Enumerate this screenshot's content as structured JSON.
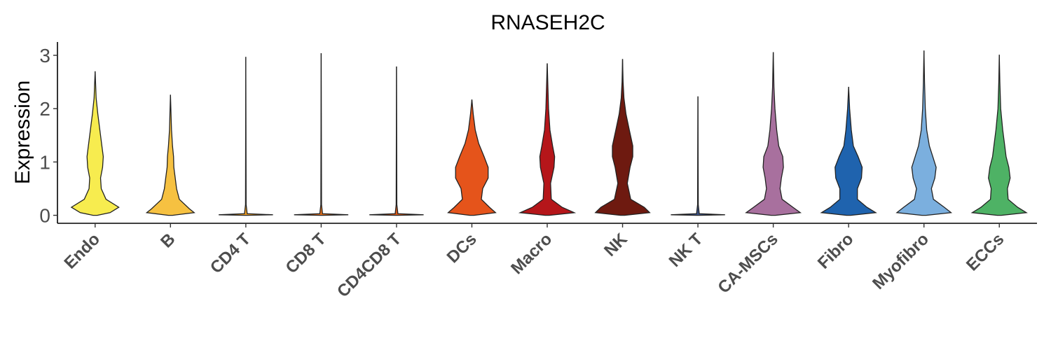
{
  "chart_data": {
    "type": "violin",
    "title": "RNASEH2C",
    "xlabel": "",
    "ylabel": "Expression",
    "ylim": [
      -0.15,
      3.25
    ],
    "yticks": [
      0,
      1,
      2,
      3
    ],
    "grid": false,
    "legend": "none",
    "categories": [
      "Endo",
      "B",
      "CD4 T",
      "CD8 T",
      "CD4CD8 T",
      "DCs",
      "Macro",
      "NK",
      "NK T",
      "CA-MSCs",
      "Fibro",
      "Myofibro",
      "ECCs"
    ],
    "colors": [
      "#F7EC4F",
      "#F6C141",
      "#F0A024",
      "#E8721C",
      "#DB5A1A",
      "#E5541B",
      "#B5161A",
      "#6E1A10",
      "#3C5488",
      "#A8709E",
      "#1F63AE",
      "#7BAFDE",
      "#4EB265"
    ],
    "max_values": [
      2.7,
      2.26,
      2.97,
      3.04,
      2.79,
      2.17,
      2.85,
      2.93,
      2.23,
      3.06,
      2.41,
      3.09,
      3.01
    ],
    "density_profiles": [
      [
        [
          0,
          0.03
        ],
        [
          0.05,
          0.22
        ],
        [
          0.15,
          0.35
        ],
        [
          0.3,
          0.16
        ],
        [
          0.5,
          0.09
        ],
        [
          0.7,
          0.08
        ],
        [
          0.9,
          0.11
        ],
        [
          1.1,
          0.12
        ],
        [
          1.3,
          0.1
        ],
        [
          1.6,
          0.07
        ],
        [
          1.9,
          0.04
        ],
        [
          2.2,
          0.015
        ],
        [
          2.45,
          0.008
        ],
        [
          2.7,
          0.0
        ]
      ],
      [
        [
          0,
          0.03
        ],
        [
          0.05,
          0.35
        ],
        [
          0.12,
          0.28
        ],
        [
          0.3,
          0.13
        ],
        [
          0.5,
          0.09
        ],
        [
          0.7,
          0.07
        ],
        [
          0.9,
          0.05
        ],
        [
          1.1,
          0.045
        ],
        [
          1.3,
          0.03
        ],
        [
          1.6,
          0.015
        ],
        [
          1.9,
          0.008
        ],
        [
          2.26,
          0.0
        ]
      ],
      [
        [
          0,
          0.02
        ],
        [
          0.01,
          0.4
        ],
        [
          0.03,
          0.02
        ],
        [
          0.2,
          0.005
        ],
        [
          2.97,
          0.0
        ]
      ],
      [
        [
          0,
          0.02
        ],
        [
          0.01,
          0.4
        ],
        [
          0.03,
          0.02
        ],
        [
          0.2,
          0.005
        ],
        [
          3.04,
          0.0
        ]
      ],
      [
        [
          0,
          0.02
        ],
        [
          0.01,
          0.4
        ],
        [
          0.03,
          0.02
        ],
        [
          0.2,
          0.005
        ],
        [
          2.79,
          0.0
        ]
      ],
      [
        [
          0,
          0.03
        ],
        [
          0.05,
          0.35
        ],
        [
          0.15,
          0.26
        ],
        [
          0.3,
          0.14
        ],
        [
          0.5,
          0.16
        ],
        [
          0.7,
          0.24
        ],
        [
          0.9,
          0.24
        ],
        [
          1.1,
          0.18
        ],
        [
          1.35,
          0.1
        ],
        [
          1.6,
          0.05
        ],
        [
          1.9,
          0.02
        ],
        [
          2.17,
          0.0
        ]
      ],
      [
        [
          0,
          0.03
        ],
        [
          0.05,
          0.4
        ],
        [
          0.15,
          0.22
        ],
        [
          0.3,
          0.06
        ],
        [
          0.6,
          0.05
        ],
        [
          0.9,
          0.1
        ],
        [
          1.1,
          0.11
        ],
        [
          1.3,
          0.08
        ],
        [
          1.6,
          0.04
        ],
        [
          2.0,
          0.02
        ],
        [
          2.4,
          0.01
        ],
        [
          2.85,
          0.0
        ]
      ],
      [
        [
          0,
          0.03
        ],
        [
          0.05,
          0.4
        ],
        [
          0.15,
          0.32
        ],
        [
          0.3,
          0.12
        ],
        [
          0.6,
          0.07
        ],
        [
          0.9,
          0.11
        ],
        [
          1.1,
          0.15
        ],
        [
          1.3,
          0.15
        ],
        [
          1.6,
          0.1
        ],
        [
          1.9,
          0.05
        ],
        [
          2.2,
          0.02
        ],
        [
          2.5,
          0.008
        ],
        [
          2.93,
          0.0
        ]
      ],
      [
        [
          0,
          0.02
        ],
        [
          0.01,
          0.4
        ],
        [
          0.03,
          0.02
        ],
        [
          0.2,
          0.005
        ],
        [
          2.23,
          0.0
        ]
      ],
      [
        [
          0,
          0.03
        ],
        [
          0.05,
          0.4
        ],
        [
          0.15,
          0.29
        ],
        [
          0.3,
          0.13
        ],
        [
          0.5,
          0.1
        ],
        [
          0.7,
          0.12
        ],
        [
          0.9,
          0.15
        ],
        [
          1.1,
          0.14
        ],
        [
          1.3,
          0.08
        ],
        [
          1.6,
          0.05
        ],
        [
          2.0,
          0.025
        ],
        [
          2.4,
          0.01
        ],
        [
          3.06,
          0.0
        ]
      ],
      [
        [
          0,
          0.03
        ],
        [
          0.05,
          0.4
        ],
        [
          0.15,
          0.27
        ],
        [
          0.3,
          0.13
        ],
        [
          0.5,
          0.13
        ],
        [
          0.7,
          0.19
        ],
        [
          0.9,
          0.2
        ],
        [
          1.1,
          0.14
        ],
        [
          1.3,
          0.07
        ],
        [
          1.6,
          0.04
        ],
        [
          2.0,
          0.015
        ],
        [
          2.41,
          0.0
        ]
      ],
      [
        [
          0,
          0.03
        ],
        [
          0.05,
          0.4
        ],
        [
          0.15,
          0.3
        ],
        [
          0.3,
          0.14
        ],
        [
          0.5,
          0.11
        ],
        [
          0.7,
          0.16
        ],
        [
          0.9,
          0.18
        ],
        [
          1.1,
          0.13
        ],
        [
          1.3,
          0.08
        ],
        [
          1.6,
          0.04
        ],
        [
          2.0,
          0.02
        ],
        [
          2.5,
          0.008
        ],
        [
          3.09,
          0.0
        ]
      ],
      [
        [
          0,
          0.03
        ],
        [
          0.05,
          0.4
        ],
        [
          0.15,
          0.27
        ],
        [
          0.3,
          0.13
        ],
        [
          0.5,
          0.12
        ],
        [
          0.7,
          0.16
        ],
        [
          0.9,
          0.14
        ],
        [
          1.1,
          0.1
        ],
        [
          1.3,
          0.08
        ],
        [
          1.6,
          0.05
        ],
        [
          2.0,
          0.02
        ],
        [
          2.5,
          0.008
        ],
        [
          3.01,
          0.0
        ]
      ]
    ]
  }
}
